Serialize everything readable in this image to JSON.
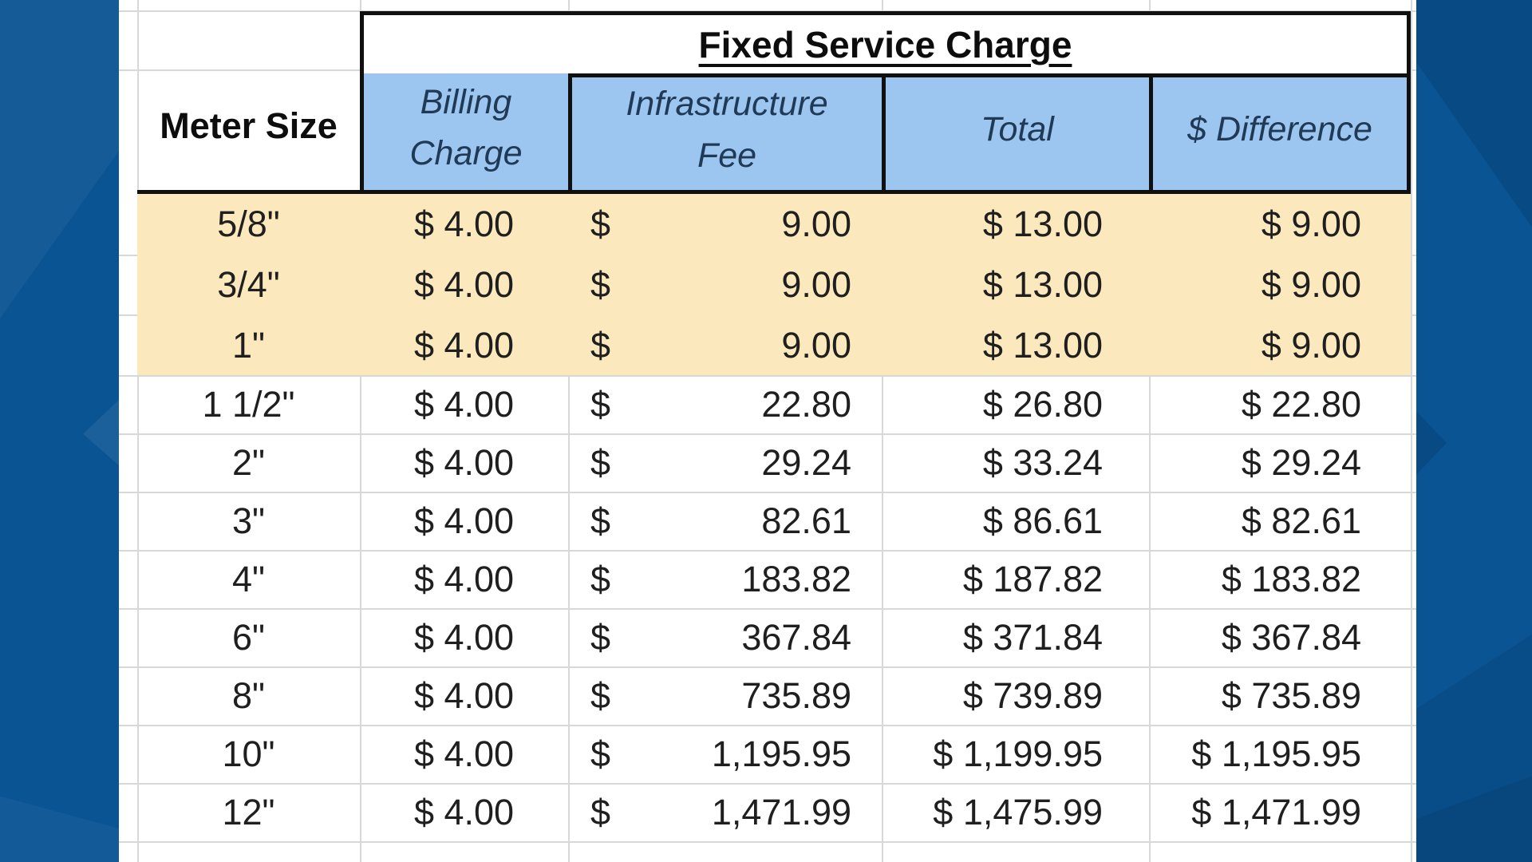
{
  "table": {
    "title": "Fixed Service Charge",
    "meter_size_header": "Meter Size",
    "columns": [
      {
        "label": "Billing\nCharge"
      },
      {
        "label": "Infrastructure\nFee"
      },
      {
        "label": "Total"
      },
      {
        "label": "$ Difference"
      }
    ],
    "rows": [
      {
        "meter": "5/8\"",
        "billing": "$ 4.00",
        "infra_currency": "$",
        "infra_amount": "9.00",
        "total": "$ 13.00",
        "difference": "$ 9.00",
        "highlighted": true
      },
      {
        "meter": "3/4\"",
        "billing": "$ 4.00",
        "infra_currency": "$",
        "infra_amount": "9.00",
        "total": "$ 13.00",
        "difference": "$ 9.00",
        "highlighted": true
      },
      {
        "meter": "1\"",
        "billing": "$ 4.00",
        "infra_currency": "$",
        "infra_amount": "9.00",
        "total": "$ 13.00",
        "difference": "$ 9.00",
        "highlighted": true
      },
      {
        "meter": "1 1/2\"",
        "billing": "$ 4.00",
        "infra_currency": "$",
        "infra_amount": "22.80",
        "total": "$ 26.80",
        "difference": "$ 22.80",
        "highlighted": false
      },
      {
        "meter": "2\"",
        "billing": "$ 4.00",
        "infra_currency": "$",
        "infra_amount": "29.24",
        "total": "$ 33.24",
        "difference": "$ 29.24",
        "highlighted": false
      },
      {
        "meter": "3\"",
        "billing": "$ 4.00",
        "infra_currency": "$",
        "infra_amount": "82.61",
        "total": "$ 86.61",
        "difference": "$ 82.61",
        "highlighted": false
      },
      {
        "meter": "4\"",
        "billing": "$ 4.00",
        "infra_currency": "$",
        "infra_amount": "183.82",
        "total": "$ 187.82",
        "difference": "$ 183.82",
        "highlighted": false
      },
      {
        "meter": "6\"",
        "billing": "$ 4.00",
        "infra_currency": "$",
        "infra_amount": "367.84",
        "total": "$ 371.84",
        "difference": "$ 367.84",
        "highlighted": false
      },
      {
        "meter": "8\"",
        "billing": "$ 4.00",
        "infra_currency": "$",
        "infra_amount": "735.89",
        "total": "$ 739.89",
        "difference": "$ 735.89",
        "highlighted": false
      },
      {
        "meter": "10\"",
        "billing": "$ 4.00",
        "infra_currency": "$",
        "infra_amount": "1,195.95",
        "total": "$ 1,199.95",
        "difference": "$ 1,195.95",
        "highlighted": false
      },
      {
        "meter": "12\"",
        "billing": "$ 4.00",
        "infra_currency": "$",
        "infra_amount": "1,471.99",
        "total": "$ 1,475.99",
        "difference": "$ 1,471.99",
        "highlighted": false
      }
    ]
  },
  "chart_data": {
    "type": "table",
    "title": "Fixed Service Charge",
    "columns": [
      "Meter Size",
      "Billing Charge",
      "Infrastructure Fee",
      "Total",
      "$ Difference"
    ],
    "rows": [
      [
        "5/8\"",
        4.0,
        9.0,
        13.0,
        9.0
      ],
      [
        "3/4\"",
        4.0,
        9.0,
        13.0,
        9.0
      ],
      [
        "1\"",
        4.0,
        9.0,
        13.0,
        9.0
      ],
      [
        "1 1/2\"",
        4.0,
        22.8,
        26.8,
        22.8
      ],
      [
        "2\"",
        4.0,
        29.24,
        33.24,
        29.24
      ],
      [
        "3\"",
        4.0,
        82.61,
        86.61,
        82.61
      ],
      [
        "4\"",
        4.0,
        183.82,
        187.82,
        183.82
      ],
      [
        "6\"",
        4.0,
        367.84,
        371.84,
        367.84
      ],
      [
        "8\"",
        4.0,
        735.89,
        739.89,
        735.89
      ],
      [
        "10\"",
        4.0,
        1195.95,
        1199.95,
        1195.95
      ],
      [
        "12\"",
        4.0,
        1471.99,
        1475.99,
        1471.99
      ]
    ],
    "highlighted_rows": [
      "5/8\"",
      "3/4\"",
      "1\""
    ],
    "units": "USD"
  },
  "colors": {
    "bg_base": "#0a5494",
    "header_fill": "#9cc6f0",
    "highlight_fill": "#fbe9bd",
    "border": "#101010",
    "gridline": "#d8d8d8",
    "header_text": "#203a56",
    "body_text": "#1f1f1f"
  }
}
